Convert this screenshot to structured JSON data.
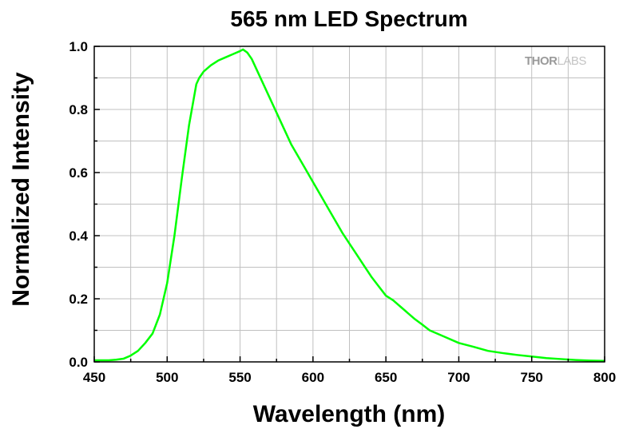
{
  "chart_data": {
    "type": "line",
    "title": "565 nm LED Spectrum",
    "xlabel": "Wavelength (nm)",
    "ylabel": "Normalized Intensity",
    "xlim": [
      450,
      800
    ],
    "ylim": [
      0.0,
      1.0
    ],
    "x_ticks": [
      450,
      500,
      550,
      600,
      650,
      700,
      750,
      800
    ],
    "y_ticks": [
      "0.0",
      "0.2",
      "0.4",
      "0.6",
      "0.8",
      "1.0"
    ],
    "grid": true,
    "line_color": "#00ff00",
    "series": [
      {
        "x": [
          450,
          460,
          465,
          470,
          475,
          480,
          485,
          490,
          495,
          500,
          505,
          510,
          515,
          520,
          522,
          525,
          530,
          535,
          540,
          545,
          550,
          552,
          555,
          558,
          560,
          565,
          570,
          575,
          580,
          585,
          590,
          595,
          600,
          605,
          610,
          615,
          620,
          625,
          630,
          635,
          640,
          645,
          650,
          655,
          660,
          665,
          670,
          675,
          680,
          690,
          700,
          710,
          720,
          730,
          740,
          750,
          760,
          770,
          780,
          790,
          800
        ],
        "y": [
          0.005,
          0.005,
          0.007,
          0.01,
          0.02,
          0.035,
          0.06,
          0.09,
          0.15,
          0.25,
          0.4,
          0.58,
          0.75,
          0.88,
          0.9,
          0.92,
          0.94,
          0.955,
          0.965,
          0.975,
          0.985,
          0.99,
          0.98,
          0.96,
          0.94,
          0.89,
          0.84,
          0.79,
          0.74,
          0.69,
          0.65,
          0.61,
          0.57,
          0.53,
          0.49,
          0.45,
          0.41,
          0.375,
          0.34,
          0.305,
          0.27,
          0.24,
          0.21,
          0.195,
          0.175,
          0.155,
          0.135,
          0.118,
          0.1,
          0.08,
          0.06,
          0.048,
          0.035,
          0.028,
          0.022,
          0.017,
          0.012,
          0.009,
          0.006,
          0.004,
          0.003
        ]
      }
    ]
  },
  "logo": {
    "text_bold": "THOR",
    "text_light": "LABS"
  }
}
